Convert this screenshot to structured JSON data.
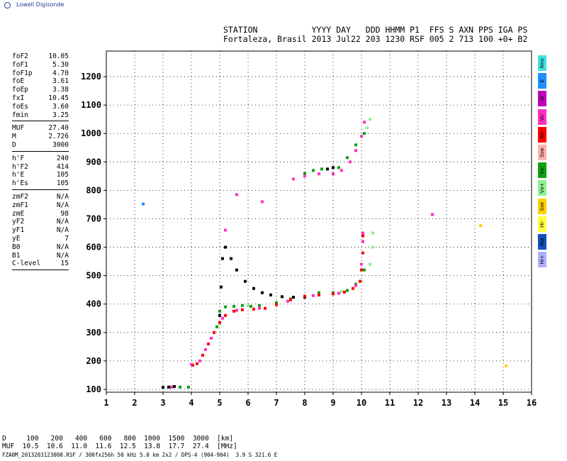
{
  "brand": "Lowell Digisonde",
  "header": {
    "line1": "STATION           YYYY DAY   DDD HHMM P1  FFS S AXN PPS IGA PS",
    "line2": "Fortaleza, Brasil 2013 Jul22 203 1230 RSF 005 2 713 100 +0+ B2"
  },
  "params": [
    {
      "k": "foF2",
      "v": "10.05"
    },
    {
      "k": "foF1",
      "v": "5.30"
    },
    {
      "k": "foF1p",
      "v": "4.70"
    },
    {
      "k": "foE",
      "v": "3.61"
    },
    {
      "k": "foEp",
      "v": "3.38"
    },
    {
      "k": "fxI",
      "v": "10.45"
    },
    {
      "k": "foEs",
      "v": "3.60"
    },
    {
      "k": "fmin",
      "v": "3.25"
    },
    {
      "k": "MUF",
      "v": "27.40"
    },
    {
      "k": "M",
      "v": "2.726"
    },
    {
      "k": "D",
      "v": "3000"
    },
    {
      "k": "h'F",
      "v": "240"
    },
    {
      "k": "h'F2",
      "v": "414"
    },
    {
      "k": "h'E",
      "v": "105"
    },
    {
      "k": "h'Es",
      "v": "105"
    },
    {
      "k": "zmF2",
      "v": "N/A"
    },
    {
      "k": "zmF1",
      "v": "N/A"
    },
    {
      "k": "zmE",
      "v": "98"
    },
    {
      "k": "yF2",
      "v": "N/A"
    },
    {
      "k": "yF1",
      "v": "N/A"
    },
    {
      "k": "yE",
      "v": "7"
    },
    {
      "k": "B0",
      "v": "N/A"
    },
    {
      "k": "B1",
      "v": "N/A"
    },
    {
      "k": "C-level",
      "v": "15"
    }
  ],
  "legend": [
    {
      "label": "Nno",
      "color": "#40e0e0"
    },
    {
      "label": "E",
      "color": "#1e90ff"
    },
    {
      "label": "W",
      "color": "#c000c0"
    },
    {
      "label": "Vo-",
      "color": "#ff30c0"
    },
    {
      "label": "X0-",
      "color": "#ff0000"
    },
    {
      "label": "Ssw",
      "color": "#ffb0b0"
    },
    {
      "label": "Vx-",
      "color": "#10a010"
    },
    {
      "label": "Vx+",
      "color": "#90f090"
    },
    {
      "label": "Sse",
      "color": "#ffd000"
    },
    {
      "label": "Hi-",
      "color": "#ffff40"
    },
    {
      "label": "Nw",
      "color": "#1050c0"
    },
    {
      "label": "Hi+",
      "color": "#b0b0ff"
    }
  ],
  "footer": {
    "row1": "D     100   200   400   600   800  1000  1500  3000  [km]",
    "row2": "MUF  10.5  10.6  11.0  11.6  12.5  13.8  17.7  27.4  [MHz]",
    "file": "FZA0M_2013203123000.RSF / 300fx256h 50 kHz 5.0 km 2x2 / DPS-4 (904-904)  3.9 S 321.6 E"
  },
  "chart_data": {
    "type": "scatter",
    "xlabel": "",
    "ylabel": "",
    "xlim": [
      1,
      16
    ],
    "ylim": [
      90,
      1290
    ],
    "xticks": [
      "1",
      "2",
      "3",
      "4",
      "5",
      "6",
      "7",
      "8",
      "9",
      "10",
      "11",
      "12",
      "13",
      "14",
      "15",
      "16"
    ],
    "yticks": [
      "100",
      "200",
      "300",
      "400",
      "500",
      "600",
      "700",
      "800",
      "900",
      "1000",
      "1100",
      "1200"
    ],
    "grid": true,
    "series": [
      {
        "color": "#000000",
        "points": [
          [
            3.0,
            107
          ],
          [
            3.2,
            108
          ],
          [
            3.4,
            110
          ],
          [
            5.0,
            360
          ],
          [
            5.05,
            460
          ],
          [
            5.1,
            560
          ],
          [
            5.2,
            600
          ],
          [
            5.4,
            560
          ],
          [
            5.6,
            520
          ],
          [
            5.9,
            480
          ],
          [
            6.2,
            455
          ],
          [
            6.5,
            440
          ],
          [
            6.8,
            432
          ],
          [
            7.2,
            426
          ],
          [
            7.6,
            424
          ],
          [
            8.0,
            424
          ],
          [
            8.8,
            875
          ],
          [
            9.0,
            880
          ]
        ]
      },
      {
        "color": "#10a010",
        "points": [
          [
            3.3,
            108
          ],
          [
            3.6,
            108
          ],
          [
            3.9,
            108
          ],
          [
            4.9,
            320
          ],
          [
            5.0,
            375
          ],
          [
            5.2,
            390
          ],
          [
            5.5,
            392
          ],
          [
            5.8,
            395
          ],
          [
            6.1,
            392
          ],
          [
            6.4,
            395
          ],
          [
            7.0,
            405
          ],
          [
            7.5,
            418
          ],
          [
            8.0,
            428
          ],
          [
            8.5,
            440
          ],
          [
            9.0,
            440
          ],
          [
            9.5,
            448
          ],
          [
            9.8,
            470
          ],
          [
            10.1,
            520
          ],
          [
            8.0,
            860
          ],
          [
            8.3,
            870
          ],
          [
            8.6,
            875
          ],
          [
            9.2,
            880
          ],
          [
            9.5,
            915
          ],
          [
            9.8,
            960
          ],
          [
            10.1,
            1000
          ]
        ]
      },
      {
        "color": "#90f090",
        "points": [
          [
            4.8,
            300
          ],
          [
            5.0,
            330
          ],
          [
            6.0,
            395
          ],
          [
            9.3,
            445
          ],
          [
            10.0,
            480
          ],
          [
            10.3,
            540
          ],
          [
            10.4,
            600
          ],
          [
            10.4,
            650
          ],
          [
            10.2,
            1020
          ],
          [
            10.3,
            1050
          ]
        ]
      },
      {
        "color": "#ff0000",
        "points": [
          [
            4.05,
            185
          ],
          [
            4.2,
            190
          ],
          [
            4.4,
            220
          ],
          [
            4.6,
            260
          ],
          [
            4.8,
            300
          ],
          [
            5.0,
            335
          ],
          [
            5.2,
            360
          ],
          [
            5.5,
            375
          ],
          [
            5.8,
            380
          ],
          [
            6.2,
            382
          ],
          [
            6.6,
            385
          ],
          [
            7.0,
            398
          ],
          [
            7.5,
            415
          ],
          [
            8.0,
            428
          ],
          [
            8.5,
            432
          ],
          [
            9.0,
            436
          ],
          [
            9.4,
            442
          ],
          [
            9.7,
            455
          ],
          [
            9.95,
            480
          ],
          [
            10.0,
            520
          ],
          [
            10.05,
            580
          ],
          [
            10.05,
            640
          ]
        ]
      },
      {
        "color": "#ff30c0",
        "points": [
          [
            3.3,
            108
          ],
          [
            4.0,
            188
          ],
          [
            4.3,
            200
          ],
          [
            4.5,
            240
          ],
          [
            4.7,
            280
          ],
          [
            5.1,
            350
          ],
          [
            5.6,
            378
          ],
          [
            6.4,
            385
          ],
          [
            7.4,
            410
          ],
          [
            8.3,
            430
          ],
          [
            9.2,
            438
          ],
          [
            9.8,
            465
          ],
          [
            10.0,
            540
          ],
          [
            10.05,
            620
          ],
          [
            10.05,
            650
          ],
          [
            5.2,
            660
          ],
          [
            6.5,
            760
          ],
          [
            5.6,
            785
          ],
          [
            7.6,
            840
          ],
          [
            8.0,
            850
          ],
          [
            8.5,
            858
          ],
          [
            9.0,
            858
          ],
          [
            9.3,
            870
          ],
          [
            9.6,
            900
          ],
          [
            9.8,
            940
          ],
          [
            10.0,
            990
          ],
          [
            10.1,
            1040
          ],
          [
            12.5,
            715
          ]
        ]
      },
      {
        "color": "#1e90ff",
        "points": [
          [
            2.3,
            752
          ]
        ]
      },
      {
        "color": "#ffd000",
        "points": [
          [
            14.2,
            676
          ],
          [
            15.1,
            183
          ]
        ]
      }
    ]
  }
}
